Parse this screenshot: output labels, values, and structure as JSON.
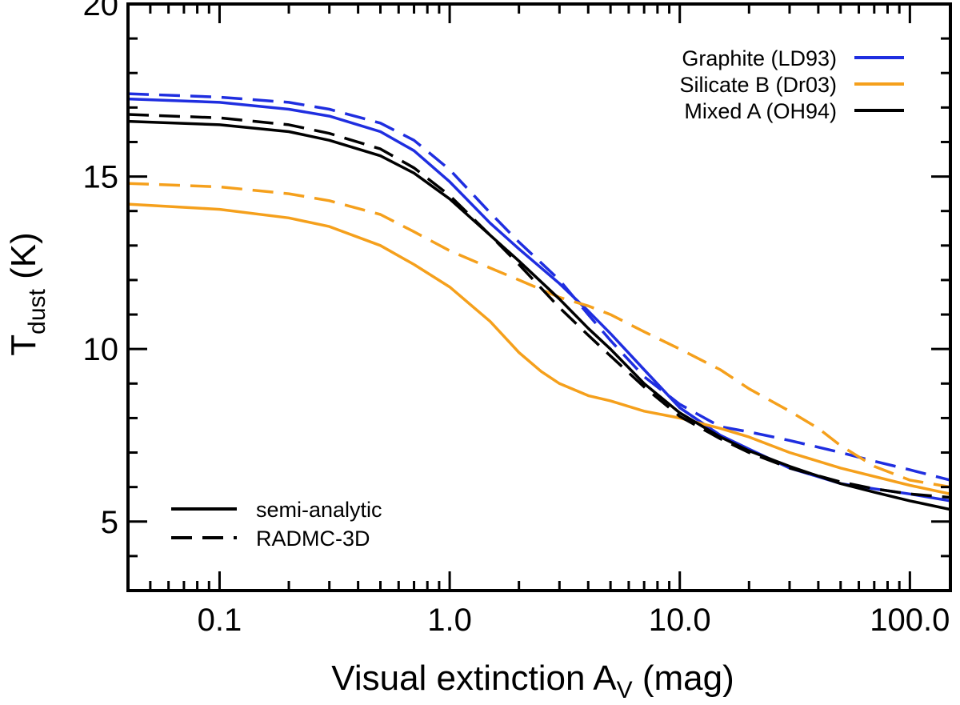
{
  "chart_data": {
    "type": "line",
    "title": "",
    "xlabel": {
      "main": "Visual extinction A",
      "sub": "V",
      "unit": " (mag)"
    },
    "ylabel": {
      "main": "T",
      "sub": "dust",
      "unit": " (K)"
    },
    "xscale": "log",
    "xlim": [
      0.04,
      150
    ],
    "ylim": [
      3,
      20
    ],
    "xticks": [
      {
        "value": 0.1,
        "label": "0.1"
      },
      {
        "value": 1,
        "label": "1.0"
      },
      {
        "value": 10,
        "label": "10.0"
      },
      {
        "value": 100,
        "label": "100.0"
      }
    ],
    "yticks": [
      {
        "value": 5,
        "label": "5"
      },
      {
        "value": 10,
        "label": "10"
      },
      {
        "value": 15,
        "label": "15"
      },
      {
        "value": 20,
        "label": "20"
      }
    ],
    "yminor_step": 1,
    "legend_placement": "top-right",
    "style_legend_placement": "bottom-left",
    "style_legend": [
      {
        "label": "semi-analytic",
        "dash": "solid"
      },
      {
        "label": "RADMC-3D",
        "dash": "dashed"
      }
    ],
    "series": [
      {
        "name": "Graphite (LD93)",
        "model": "semi-analytic",
        "color": "#1f2ee0",
        "dash": "solid",
        "in_legend": true,
        "x": [
          0.04,
          0.1,
          0.2,
          0.3,
          0.5,
          0.7,
          1.0,
          1.5,
          2.0,
          3.0,
          4.0,
          5.0,
          7.0,
          10.0,
          15.0,
          20.0,
          30.0,
          50.0,
          70.0,
          100.0,
          150.0
        ],
        "y": [
          17.25,
          17.15,
          16.95,
          16.75,
          16.3,
          15.75,
          14.85,
          13.65,
          12.9,
          11.9,
          11.1,
          10.45,
          9.4,
          8.3,
          7.5,
          7.1,
          6.55,
          6.1,
          5.95,
          5.8,
          5.6
        ]
      },
      {
        "name": "Graphite (LD93)",
        "model": "RADMC-3D",
        "color": "#1f2ee0",
        "dash": "dashed",
        "in_legend": false,
        "x": [
          0.04,
          0.1,
          0.2,
          0.3,
          0.5,
          0.7,
          1.0,
          1.5,
          2.0,
          3.0,
          4.0,
          5.0,
          7.0,
          10.0,
          15.0,
          20.0,
          30.0,
          50.0,
          70.0,
          100.0,
          150.0
        ],
        "y": [
          17.4,
          17.3,
          17.15,
          16.95,
          16.55,
          16.05,
          15.2,
          13.95,
          13.1,
          12.0,
          11.0,
          10.25,
          9.2,
          8.4,
          7.75,
          7.6,
          7.35,
          7.0,
          6.75,
          6.5,
          6.2
        ]
      },
      {
        "name": "Silicate B (Dr03)",
        "model": "semi-analytic",
        "color": "#f5a01c",
        "dash": "solid",
        "in_legend": true,
        "x": [
          0.04,
          0.1,
          0.2,
          0.3,
          0.5,
          0.7,
          1.0,
          1.5,
          2.0,
          2.5,
          3.0,
          4.0,
          5.0,
          7.0,
          10.0,
          15.0,
          20.0,
          30.0,
          50.0,
          100.0,
          150.0
        ],
        "y": [
          14.2,
          14.05,
          13.8,
          13.55,
          13.0,
          12.45,
          11.8,
          10.8,
          9.9,
          9.35,
          9.0,
          8.65,
          8.5,
          8.2,
          8.0,
          7.7,
          7.45,
          7.0,
          6.55,
          6.05,
          5.8
        ]
      },
      {
        "name": "Silicate B (Dr03)",
        "model": "RADMC-3D",
        "color": "#f5a01c",
        "dash": "dashed",
        "in_legend": false,
        "x": [
          0.04,
          0.1,
          0.2,
          0.3,
          0.5,
          0.7,
          1.0,
          1.5,
          2.0,
          3.0,
          4.0,
          5.0,
          7.0,
          10.0,
          15.0,
          20.0,
          30.0,
          40.0,
          50.0,
          70.0,
          100.0,
          150.0
        ],
        "y": [
          14.8,
          14.7,
          14.5,
          14.3,
          13.9,
          13.4,
          12.85,
          12.35,
          12.0,
          11.5,
          11.25,
          11.0,
          10.5,
          10.0,
          9.4,
          8.85,
          8.2,
          7.7,
          7.2,
          6.6,
          6.2,
          6.0
        ]
      },
      {
        "name": "Mixed A (OH94)",
        "model": "semi-analytic",
        "color": "#000000",
        "dash": "solid",
        "in_legend": true,
        "x": [
          0.04,
          0.1,
          0.2,
          0.3,
          0.5,
          0.7,
          1.0,
          1.5,
          2.0,
          3.0,
          4.0,
          5.0,
          7.0,
          10.0,
          15.0,
          20.0,
          30.0,
          50.0,
          70.0,
          100.0,
          150.0
        ],
        "y": [
          16.6,
          16.5,
          16.3,
          16.05,
          15.6,
          15.1,
          14.35,
          13.3,
          12.55,
          11.45,
          10.6,
          10.0,
          9.0,
          8.15,
          7.45,
          7.05,
          6.6,
          6.1,
          5.85,
          5.6,
          5.35
        ]
      },
      {
        "name": "Mixed A (OH94)",
        "model": "RADMC-3D",
        "color": "#000000",
        "dash": "dashed",
        "in_legend": false,
        "x": [
          0.04,
          0.1,
          0.2,
          0.3,
          0.5,
          0.7,
          1.0,
          1.5,
          2.0,
          3.0,
          4.0,
          5.0,
          7.0,
          10.0,
          15.0,
          20.0,
          30.0,
          50.0,
          70.0,
          100.0,
          150.0
        ],
        "y": [
          16.8,
          16.7,
          16.5,
          16.25,
          15.8,
          15.25,
          14.45,
          13.3,
          12.45,
          11.2,
          10.4,
          9.8,
          8.9,
          8.05,
          7.4,
          7.0,
          6.55,
          6.15,
          5.95,
          5.8,
          5.7
        ]
      }
    ]
  }
}
